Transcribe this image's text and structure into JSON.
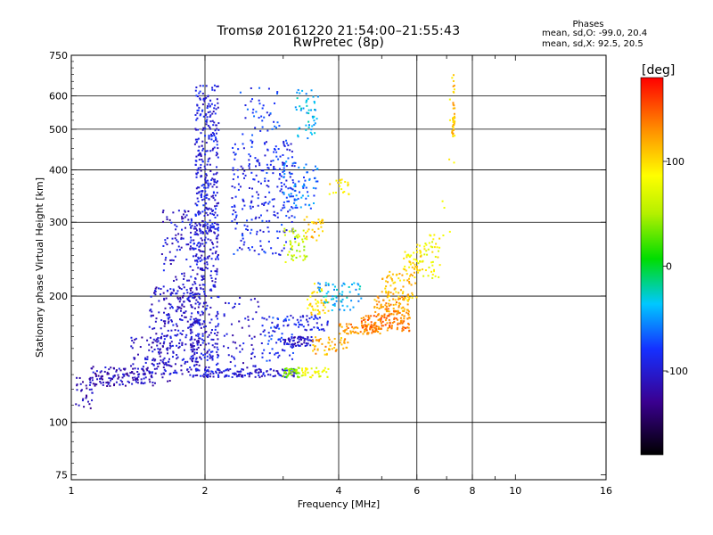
{
  "header": {
    "title": "Tromsø 20161220 21:54:00–21:55:43",
    "subtitle": "RwPretec (8p)",
    "phases_title": "Phases",
    "phases_o": "mean, sd,O: -99.0, 20.4",
    "phases_x": "mean, sd,X:  92.5, 20.5"
  },
  "colorbar": {
    "unit_label": "[deg]",
    "range": [
      -180,
      180
    ],
    "ticks": [
      {
        "value": 100,
        "label": "100"
      },
      {
        "value": 0,
        "label": "0"
      },
      {
        "value": -100,
        "label": "-100"
      }
    ]
  },
  "chart_data": {
    "type": "scatter",
    "title": "Tromsø 20161220 21:54:00–21:55:43",
    "subtitle": "RwPretec (8p)",
    "xlabel": "Frequency [MHz]",
    "ylabel": "Stationary phase Virtual Height [km]",
    "x_scale": "log",
    "y_scale": "log",
    "xlim": [
      1,
      16
    ],
    "ylim": [
      73,
      750
    ],
    "x_ticks": [
      {
        "value": 1,
        "label": "1"
      },
      {
        "value": 2,
        "label": "2"
      },
      {
        "value": 4,
        "label": "4"
      },
      {
        "value": 6,
        "label": "6"
      },
      {
        "value": 8,
        "label": "8"
      },
      {
        "value": 10,
        "label": "10"
      },
      {
        "value": 16,
        "label": "16"
      }
    ],
    "x_grid": [
      2,
      4,
      6,
      8
    ],
    "x_minor_ticks": [
      3,
      5,
      7,
      9
    ],
    "y_ticks": [
      {
        "value": 75,
        "label": "75"
      },
      {
        "value": 100,
        "label": "100"
      },
      {
        "value": 200,
        "label": "200"
      },
      {
        "value": 300,
        "label": "300"
      },
      {
        "value": 400,
        "label": "400"
      },
      {
        "value": 500,
        "label": "500"
      },
      {
        "value": 600,
        "label": "600"
      },
      {
        "value": 750,
        "label": "750"
      }
    ],
    "y_grid": [
      100,
      200,
      300,
      400,
      500,
      600
    ],
    "color_variable": "phase [deg]",
    "color_range": [
      -180,
      180
    ],
    "clusters": [
      {
        "f": [
          1.02,
          1.12
        ],
        "h": [
          108,
          128
        ],
        "phase": -115,
        "n": 30
      },
      {
        "f": [
          1.1,
          1.55
        ],
        "h": [
          122,
          136
        ],
        "phase": -112,
        "n": 130
      },
      {
        "f": [
          1.35,
          1.7
        ],
        "h": [
          125,
          160
        ],
        "phase": -108,
        "n": 80
      },
      {
        "f": [
          1.5,
          1.95
        ],
        "h": [
          130,
          210
        ],
        "phase": -105,
        "n": 220
      },
      {
        "f": [
          1.6,
          2.0
        ],
        "h": [
          170,
          320
        ],
        "phase": -102,
        "n": 150
      },
      {
        "f": [
          1.85,
          2.15
        ],
        "h": [
          128,
          300
        ],
        "phase": -100,
        "n": 320
      },
      {
        "f": [
          1.9,
          2.15
        ],
        "h": [
          280,
          640
        ],
        "phase": -95,
        "n": 300
      },
      {
        "f": [
          2.3,
          3.2
        ],
        "h": [
          250,
          470
        ],
        "phase": -88,
        "n": 260
      },
      {
        "f": [
          2.4,
          2.95
        ],
        "h": [
          470,
          630
        ],
        "phase": -80,
        "n": 40
      },
      {
        "f": [
          2.0,
          3.2
        ],
        "h": [
          128,
          134
        ],
        "phase": -100,
        "n": 120
      },
      {
        "f": [
          2.2,
          2.7
        ],
        "h": [
          135,
          200
        ],
        "phase": -102,
        "n": 60
      },
      {
        "f": [
          2.7,
          3.2
        ],
        "h": [
          140,
          180
        ],
        "phase": -85,
        "n": 70
      },
      {
        "f": [
          3.0,
          3.5
        ],
        "h": [
          152,
          160
        ],
        "phase": -105,
        "n": 60
      },
      {
        "f": [
          3.0,
          3.3
        ],
        "h": [
          128,
          135
        ],
        "phase": 40,
        "n": 40
      },
      {
        "f": [
          3.3,
          3.8
        ],
        "h": [
          128,
          135
        ],
        "phase": 80,
        "n": 40
      },
      {
        "f": [
          3.0,
          3.4
        ],
        "h": [
          240,
          290
        ],
        "phase": 60,
        "n": 50
      },
      {
        "f": [
          3.0,
          3.6
        ],
        "h": [
          320,
          420
        ],
        "phase": -60,
        "n": 70
      },
      {
        "f": [
          3.2,
          3.6
        ],
        "h": [
          470,
          620
        ],
        "phase": -40,
        "n": 50
      },
      {
        "f": [
          3.3,
          3.7
        ],
        "h": [
          270,
          310
        ],
        "phase": 110,
        "n": 30
      },
      {
        "f": [
          3.4,
          3.8
        ],
        "h": [
          180,
          215
        ],
        "phase": 100,
        "n": 45
      },
      {
        "f": [
          3.2,
          3.8
        ],
        "h": [
          165,
          180
        ],
        "phase": -90,
        "n": 40
      },
      {
        "f": [
          3.5,
          4.2
        ],
        "h": [
          145,
          160
        ],
        "phase": 120,
        "n": 50
      },
      {
        "f": [
          3.6,
          4.5
        ],
        "h": [
          185,
          215
        ],
        "phase": -40,
        "n": 60
      },
      {
        "f": [
          4.0,
          5.0
        ],
        "h": [
          162,
          172
        ],
        "phase": 130,
        "n": 70
      },
      {
        "f": [
          4.5,
          5.8
        ],
        "h": [
          165,
          180
        ],
        "phase": 140,
        "n": 110
      },
      {
        "f": [
          4.8,
          5.8
        ],
        "h": [
          180,
          200
        ],
        "phase": 125,
        "n": 80
      },
      {
        "f": [
          5.0,
          6.0
        ],
        "h": [
          195,
          230
        ],
        "phase": 110,
        "n": 70
      },
      {
        "f": [
          5.6,
          6.2
        ],
        "h": [
          230,
          260
        ],
        "phase": 95,
        "n": 40
      },
      {
        "f": [
          6.0,
          6.8
        ],
        "h": [
          220,
          280
        ],
        "phase": 85,
        "n": 50
      },
      {
        "f": [
          3.8,
          4.3
        ],
        "h": [
          345,
          380
        ],
        "phase": 90,
        "n": 20
      },
      {
        "f": [
          7.2,
          7.3
        ],
        "h": [
          470,
          690
        ],
        "phase": 110,
        "n": 40
      },
      {
        "f": [
          6.8,
          7.3
        ],
        "h": [
          270,
          660
        ],
        "phase": 80,
        "n": 8
      }
    ]
  }
}
